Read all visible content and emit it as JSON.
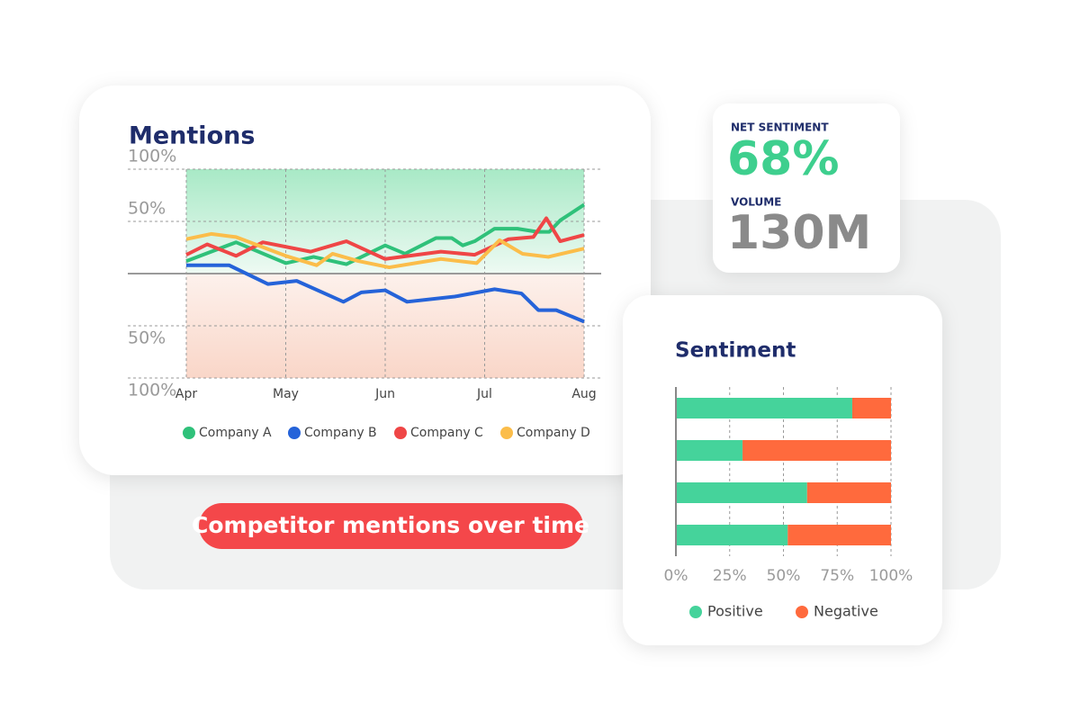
{
  "chart_data": [
    {
      "type": "line",
      "title": "Mentions",
      "xlim": [
        0,
        4
      ],
      "xticks": [
        {
          "value": 0,
          "label": "Apr"
        },
        {
          "value": 1,
          "label": "May"
        },
        {
          "value": 2,
          "label": "Jun"
        },
        {
          "value": 3,
          "label": "Jul"
        },
        {
          "value": 4,
          "label": "Aug"
        }
      ],
      "ylim": [
        -100,
        100
      ],
      "yticks": [
        {
          "value": 100,
          "label": "100%"
        },
        {
          "value": 50,
          "label": "50%"
        },
        {
          "value": -50,
          "label": "50%"
        },
        {
          "value": -100,
          "label": "100%"
        }
      ],
      "grid": true,
      "series": [
        {
          "name": "Company A",
          "color": "#2fc17a",
          "x": [
            0,
            0.5,
            1.0,
            1.28,
            1.61,
            2.0,
            2.2,
            2.51,
            2.67,
            2.78,
            2.9,
            3.1,
            3.33,
            3.53,
            3.65,
            3.76,
            4.0
          ],
          "values": [
            12,
            30,
            10,
            16,
            9,
            27,
            19,
            34,
            34,
            27,
            31,
            43,
            43,
            40,
            40,
            51,
            66
          ]
        },
        {
          "name": "Company B",
          "color": "#2563d9",
          "x": [
            0,
            0.43,
            0.82,
            1.11,
            1.58,
            1.76,
            2.0,
            2.22,
            2.7,
            3.1,
            3.37,
            3.54,
            3.72,
            4.0
          ],
          "values": [
            8,
            8,
            -10,
            -7,
            -27,
            -18,
            -16,
            -27,
            -22,
            -15,
            -19,
            -35,
            -35,
            -46
          ]
        },
        {
          "name": "Company C",
          "color": "#ef4646",
          "x": [
            0,
            0.21,
            0.5,
            0.77,
            1.25,
            1.61,
            2.0,
            2.56,
            2.9,
            3.24,
            3.49,
            3.62,
            3.76,
            4.0
          ],
          "values": [
            18,
            28,
            17,
            30,
            21,
            31,
            14,
            21,
            18,
            33,
            35,
            53,
            31,
            37
          ]
        },
        {
          "name": "Company D",
          "color": "#fbbd4a",
          "x": [
            0,
            0.25,
            0.5,
            1.0,
            1.31,
            1.47,
            1.73,
            2.04,
            2.56,
            2.92,
            3.15,
            3.38,
            3.64,
            4.0
          ],
          "values": [
            33,
            38,
            35,
            17,
            8,
            19,
            12,
            6,
            14,
            10,
            32,
            19,
            16,
            24
          ]
        }
      ]
    },
    {
      "type": "bar",
      "orientation": "horizontal",
      "stacked": true,
      "title": "Sentiment",
      "categories": [
        null,
        null,
        null,
        null
      ],
      "xlim": [
        0,
        100
      ],
      "xticks": [
        {
          "value": 0,
          "label": "0%"
        },
        {
          "value": 25,
          "label": "25%"
        },
        {
          "value": 50,
          "label": "50%"
        },
        {
          "value": 75,
          "label": "75%"
        },
        {
          "value": 100,
          "label": "100%"
        }
      ],
      "grid": true,
      "series": [
        {
          "name": "Positive",
          "color": "#45d39b",
          "values": [
            82,
            31,
            61,
            52
          ]
        },
        {
          "name": "Negative",
          "color": "#ff6a3d",
          "values": [
            18,
            69,
            39,
            48
          ]
        }
      ]
    }
  ],
  "kpis": [
    {
      "label": "NET SENTIMENT",
      "value": "68%"
    },
    {
      "label": "VOLUME",
      "value": "130M"
    }
  ],
  "caption": "Competitor mentions over time"
}
